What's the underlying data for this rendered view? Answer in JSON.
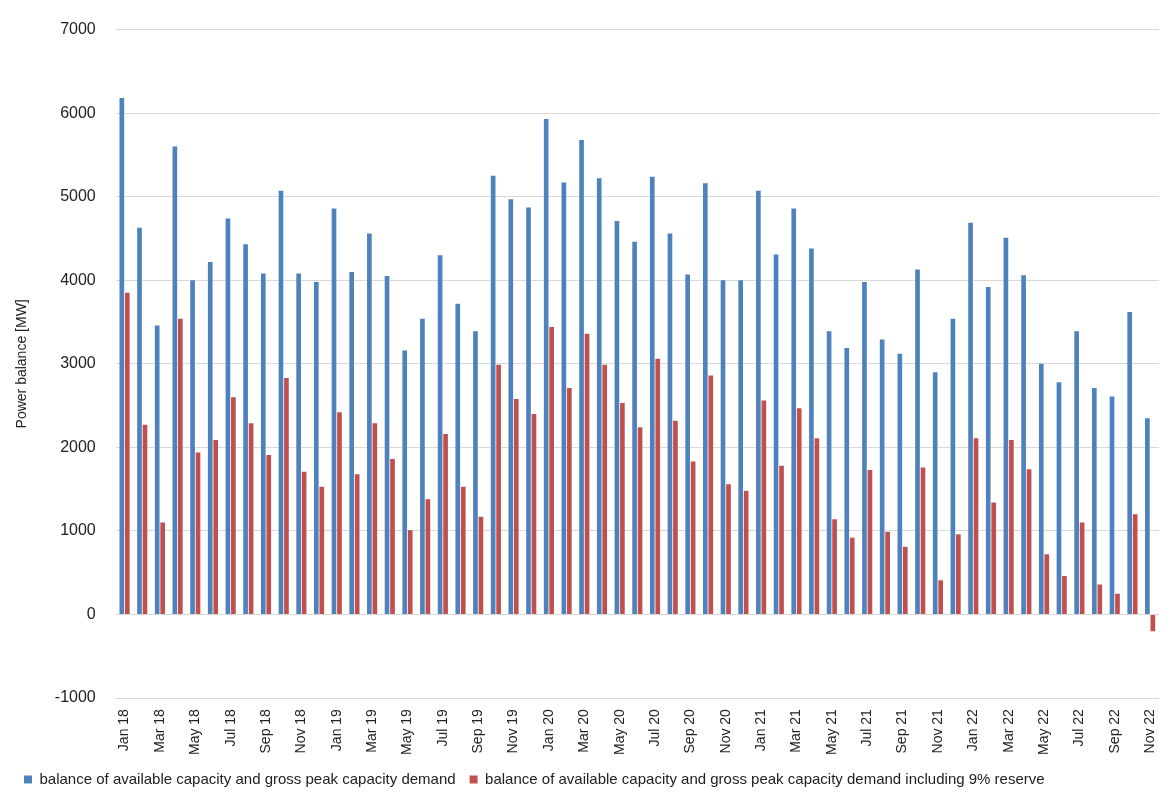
{
  "chart_data": {
    "type": "bar",
    "ylabel": "Power balance [MW]",
    "categories": [
      "Jan 18",
      null,
      "Mar 18",
      null,
      "May 18",
      null,
      "Jul 18",
      null,
      "Sep 18",
      null,
      "Nov 18",
      null,
      "Jan 19",
      null,
      "Mar 19",
      null,
      "May 19",
      null,
      "Jul 19",
      null,
      "Sep 19",
      null,
      "Nov 19",
      null,
      "Jan 20",
      null,
      "Mar 20",
      null,
      "May 20",
      null,
      "Jul 20",
      null,
      "Sep 20",
      null,
      "Nov 20",
      null,
      "Jan 21",
      null,
      "Mar 21",
      null,
      "May 21",
      null,
      "Jul 21",
      null,
      "Sep 21",
      null,
      "Nov 21",
      null,
      "Jan 22",
      null,
      "Mar 22",
      null,
      "May 22",
      null,
      "Jul 22",
      null,
      "Sep 22",
      null,
      "Nov 22"
    ],
    "series": [
      {
        "name": "balance of available capacity and gross peak capacity demand",
        "color": "#4f81bd",
        "values": [
          6180,
          4630,
          3460,
          5600,
          4000,
          4220,
          4740,
          4430,
          4080,
          5070,
          4080,
          3980,
          4860,
          4100,
          4560,
          4050,
          3160,
          3540,
          4300,
          3720,
          3390,
          5250,
          4970,
          4870,
          5930,
          5170,
          5680,
          5220,
          4710,
          4460,
          5240,
          4560,
          4070,
          5160,
          4000,
          4000,
          5070,
          4310,
          4860,
          4380,
          3390,
          3190,
          3980,
          3290,
          3120,
          4130,
          2900,
          3540,
          4690,
          3920,
          4510,
          4060,
          3000,
          2780,
          3390,
          2710,
          2610,
          3620,
          2350
        ]
      },
      {
        "name": "balance of available capacity and gross peak capacity demand including 9% reserve",
        "color": "#c0504d",
        "values": [
          3850,
          2270,
          1100,
          3540,
          1940,
          2090,
          2600,
          2290,
          1910,
          2830,
          1710,
          1530,
          2420,
          1680,
          2290,
          1860,
          1010,
          1380,
          2160,
          1530,
          1170,
          2990,
          2580,
          2400,
          3440,
          2710,
          3360,
          2990,
          2530,
          2240,
          3060,
          2320,
          1830,
          2860,
          1560,
          1480,
          2560,
          1780,
          2470,
          2110,
          1140,
          920,
          1730,
          990,
          810,
          1760,
          410,
          960,
          2110,
          1340,
          2090,
          1740,
          720,
          460,
          1100,
          360,
          250,
          1200,
          -200
        ]
      }
    ],
    "ylim": [
      -1000,
      7000
    ],
    "yticks": [
      -1000,
      0,
      1000,
      2000,
      3000,
      4000,
      5000,
      6000,
      7000
    ],
    "grid": "y",
    "legend": "bottom"
  }
}
